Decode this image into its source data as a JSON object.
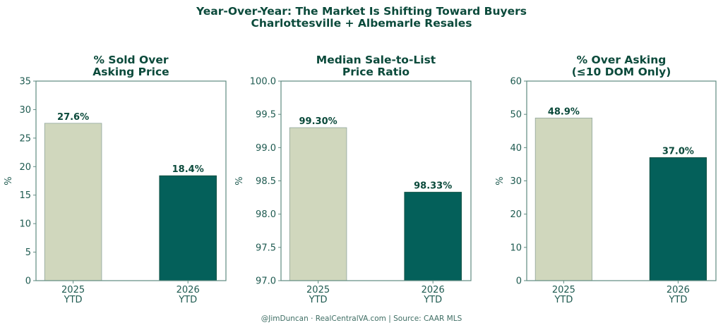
{
  "figure": {
    "title_line1": "Year-Over-Year: The Market Is Shifting Toward Buyers",
    "title_line2": "Charlottesville + Albemarle Resales",
    "footer": "@JimDuncan · RealCentralVA.com | Source: CAAR MLS"
  },
  "colors": {
    "bar_2025": "#d0d7bd",
    "bar_2026": "#04605a",
    "text": "#0b4a3b",
    "axis": "#5f8a80"
  },
  "chart_data": [
    {
      "type": "bar",
      "title": [
        "% Sold Over",
        "Asking Price"
      ],
      "ylabel": "%",
      "xlabel": "",
      "categories": [
        [
          "2025",
          "YTD"
        ],
        [
          "2026",
          "YTD"
        ]
      ],
      "values": [
        27.6,
        18.4
      ],
      "data_labels": [
        "27.6%",
        "18.4%"
      ],
      "ylim": [
        0,
        35
      ],
      "yticks": [
        0,
        5,
        10,
        15,
        20,
        25,
        30,
        35
      ],
      "ytick_labels": [
        "0",
        "5",
        "10",
        "15",
        "20",
        "25",
        "30",
        "35"
      ],
      "grid": false
    },
    {
      "type": "bar",
      "title": [
        "Median Sale-to-List",
        "Price Ratio"
      ],
      "ylabel": "%",
      "xlabel": "",
      "categories": [
        [
          "2025",
          "YTD"
        ],
        [
          "2026",
          "YTD"
        ]
      ],
      "values": [
        99.3,
        98.33
      ],
      "data_labels": [
        "99.30%",
        "98.33%"
      ],
      "ylim": [
        97.0,
        100.0
      ],
      "yticks": [
        97.0,
        97.5,
        98.0,
        98.5,
        99.0,
        99.5,
        100.0
      ],
      "ytick_labels": [
        "97.0",
        "97.5",
        "98.0",
        "98.5",
        "99.0",
        "99.5",
        "100.0"
      ],
      "grid": false
    },
    {
      "type": "bar",
      "title": [
        "% Over Asking",
        "(≤10 DOM Only)"
      ],
      "ylabel": "%",
      "xlabel": "",
      "categories": [
        [
          "2025",
          "YTD"
        ],
        [
          "2026",
          "YTD"
        ]
      ],
      "values": [
        48.9,
        37.0
      ],
      "data_labels": [
        "48.9%",
        "37.0%"
      ],
      "ylim": [
        0,
        60
      ],
      "yticks": [
        0,
        10,
        20,
        30,
        40,
        50,
        60
      ],
      "ytick_labels": [
        "0",
        "10",
        "20",
        "30",
        "40",
        "50",
        "60"
      ],
      "grid": false
    }
  ]
}
